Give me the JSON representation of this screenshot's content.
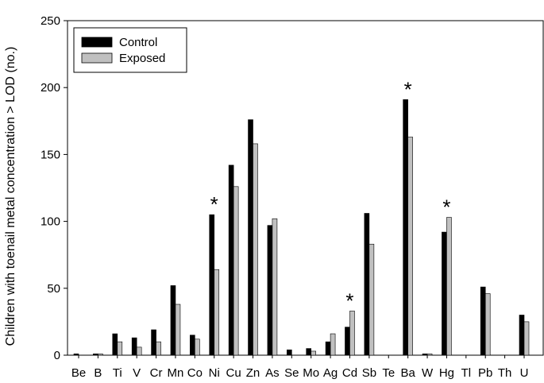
{
  "chart_data": {
    "type": "bar",
    "title": "",
    "xlabel": "",
    "ylabel": "Children with toenail metal concentration > LOD (no.)",
    "ylim": [
      0,
      250
    ],
    "yticks": [
      0,
      50,
      100,
      150,
      200,
      250
    ],
    "grid": false,
    "legend_position": "top-left",
    "categories": [
      "Be",
      "B",
      "Ti",
      "V",
      "Cr",
      "Mn",
      "Co",
      "Ni",
      "Cu",
      "Zn",
      "As",
      "Se",
      "Mo",
      "Ag",
      "Cd",
      "Sb",
      "Te",
      "Ba",
      "W",
      "Hg",
      "Tl",
      "Pb",
      "Th",
      "U"
    ],
    "series": [
      {
        "name": "Control",
        "color": "#000000",
        "values": [
          1,
          1,
          16,
          13,
          19,
          52,
          15,
          105,
          142,
          176,
          97,
          4,
          5,
          10,
          21,
          106,
          0,
          191,
          1,
          92,
          0,
          51,
          0,
          30
        ]
      },
      {
        "name": "Exposed",
        "color": "#c0c0c0",
        "values": [
          0,
          1,
          10,
          6,
          10,
          38,
          12,
          64,
          126,
          158,
          102,
          0,
          3,
          16,
          33,
          83,
          0,
          163,
          1,
          103,
          0,
          46,
          0,
          25
        ]
      }
    ],
    "annotations": [
      {
        "category": "Ni",
        "text": "*"
      },
      {
        "category": "Cd",
        "text": "*"
      },
      {
        "category": "Ba",
        "text": "*"
      },
      {
        "category": "Hg",
        "text": "*"
      }
    ]
  }
}
